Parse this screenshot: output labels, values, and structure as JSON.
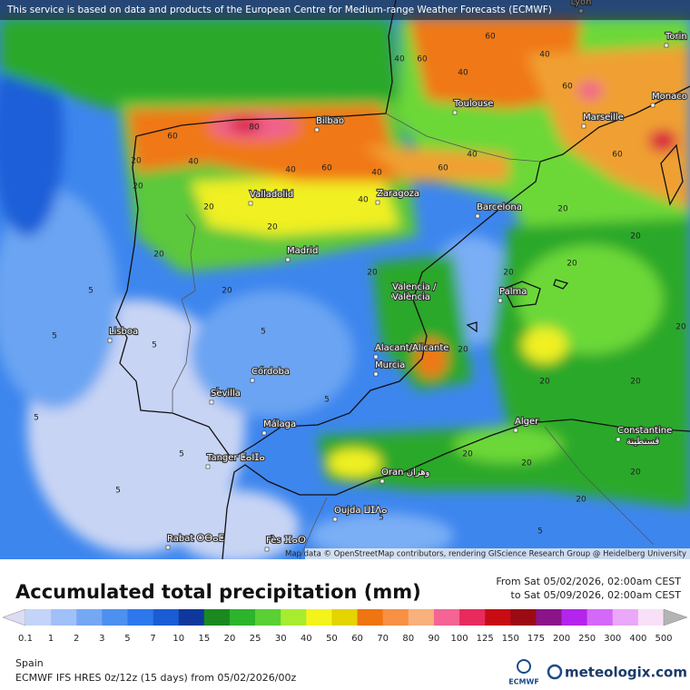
{
  "header": {
    "notice": "This service is based on data and products of the European Centre for Medium-range Weather Forecasts (ECMWF)"
  },
  "map": {
    "attribution": "Map data © OpenStreetMap contributors, rendering GIScience Research Group @ Heidelberg University",
    "cities": [
      "Lyon",
      "Torin",
      "Bilbao",
      "Toulouse",
      "Marseille",
      "Monaco",
      "Valladolid",
      "Zaragoza",
      "Barcelona",
      "Madrid",
      "Valencia /",
      "València",
      "Palma",
      "Lisboa",
      "Alacant/Alicante",
      "Murcia",
      "Córdoba",
      "Sevilla",
      "Málaga",
      "Alger",
      "Constantine",
      "قسنطينة",
      "Tanger ⵟⴰⵏⵊⴰ",
      "Oran وهران",
      "Oujda ⵡⵊⴷⴰ",
      "Rabat ⵔⴱⴰⵟ",
      "Fès ⴼⴰⵙ"
    ],
    "contour_labels": [
      20,
      20,
      40,
      60,
      80,
      40,
      60,
      40,
      20,
      20,
      20,
      40,
      60,
      40,
      60,
      40,
      60,
      40,
      60,
      20,
      20,
      20,
      20,
      20,
      5,
      5,
      5,
      5,
      5,
      5,
      5,
      5,
      5,
      20,
      20,
      20,
      20,
      20,
      20,
      5,
      5,
      20,
      20,
      40,
      60,
      20
    ]
  },
  "footer": {
    "title": "Accumulated total precipitation (mm)",
    "from": "From Sat 05/02/2026, 02:00am CEST",
    "to": "to Sat 05/09/2026, 02:00am CEST",
    "region": "Spain",
    "model": "ECMWF IFS HRES 0z/12z (15 days) from  05/02/2026/00z",
    "ecmwf_logo": "ECMWF",
    "brand": "meteologix.com"
  },
  "legend": {
    "ticks": [
      0.1,
      1,
      2,
      3,
      5,
      7,
      10,
      15,
      20,
      25,
      30,
      40,
      50,
      60,
      70,
      80,
      90,
      100,
      125,
      150,
      175,
      200,
      250,
      300,
      400,
      500
    ],
    "under_color": "#dcdcf4",
    "over_color": "#b4b4b4",
    "colors": [
      "#c4d4f8",
      "#a0c0f8",
      "#74a8f4",
      "#4c90f0",
      "#2c78ec",
      "#1a5cd4",
      "#10389c",
      "#1a8a20",
      "#2cb42c",
      "#5ad034",
      "#a8ec30",
      "#f4f41c",
      "#e4d400",
      "#f07410",
      "#f89044",
      "#f8b07c",
      "#f46494",
      "#e82a5c",
      "#c80c14",
      "#9c0a14",
      "#8a1488",
      "#b424ec",
      "#d468f8",
      "#eaa8f8",
      "#f8e0f8"
    ]
  }
}
